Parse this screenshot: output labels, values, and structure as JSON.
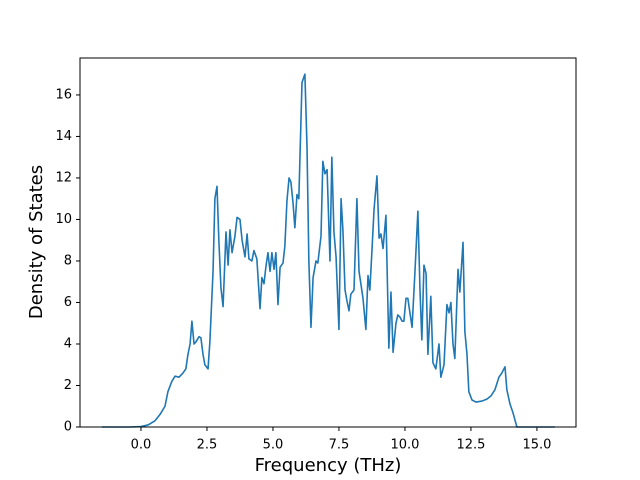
{
  "chart_data": {
    "type": "line",
    "xlabel": "Frequency (THz)",
    "ylabel": "Density of States",
    "color": "#1f77b4",
    "x": [
      -1.48,
      -0.42,
      0,
      0.27,
      0.53,
      0.72,
      0.91,
      1.02,
      1.17,
      1.29,
      1.44,
      1.59,
      1.7,
      1.78,
      1.86,
      1.93,
      2.01,
      2.08,
      2.2,
      2.27,
      2.35,
      2.42,
      2.54,
      2.61,
      2.73,
      2.8,
      2.88,
      2.95,
      3.03,
      3.11,
      3.22,
      3.3,
      3.37,
      3.45,
      3.56,
      3.64,
      3.75,
      3.83,
      3.94,
      4.02,
      4.09,
      4.2,
      4.28,
      4.39,
      4.51,
      4.58,
      4.66,
      4.73,
      4.81,
      4.89,
      4.96,
      5.04,
      5.11,
      5.19,
      5.27,
      5.38,
      5.45,
      5.53,
      5.61,
      5.68,
      5.76,
      5.83,
      5.91,
      5.98,
      6.1,
      6.21,
      6.29,
      6.36,
      6.44,
      6.52,
      6.63,
      6.7,
      6.82,
      6.89,
      6.97,
      7.05,
      7.16,
      7.23,
      7.31,
      7.39,
      7.5,
      7.58,
      7.65,
      7.73,
      7.8,
      7.88,
      7.95,
      8.07,
      8.18,
      8.26,
      8.33,
      8.41,
      8.52,
      8.6,
      8.67,
      8.75,
      8.83,
      8.94,
      9.02,
      9.09,
      9.17,
      9.28,
      9.39,
      9.47,
      9.55,
      9.66,
      9.73,
      9.81,
      9.89,
      9.96,
      10.04,
      10.11,
      10.19,
      10.27,
      10.38,
      10.49,
      10.57,
      10.64,
      10.72,
      10.8,
      10.87,
      10.98,
      11.06,
      11.17,
      11.29,
      11.36,
      11.48,
      11.59,
      11.67,
      11.74,
      11.82,
      11.89,
      12.01,
      12.08,
      12.2,
      12.27,
      12.35,
      12.42,
      12.54,
      12.69,
      12.92,
      13.11,
      13.26,
      13.41,
      13.56,
      13.67,
      13.79,
      13.86,
      13.98,
      14.09,
      14.24,
      14.73,
      15.68
    ],
    "values": [
      0,
      0,
      0.02,
      0.1,
      0.3,
      0.6,
      1.0,
      1.7,
      2.2,
      2.45,
      2.4,
      2.6,
      2.8,
      3.5,
      4.0,
      5.1,
      4.0,
      4.1,
      4.35,
      4.3,
      3.5,
      3.0,
      2.8,
      4.1,
      7.5,
      11.0,
      11.6,
      9.0,
      6.7,
      5.8,
      9.4,
      7.8,
      9.5,
      8.4,
      9.2,
      10.1,
      10.0,
      9.0,
      8.2,
      9.3,
      8.1,
      8.0,
      8.5,
      8.1,
      5.7,
      7.2,
      6.9,
      7.7,
      8.4,
      7.5,
      8.4,
      7.6,
      8.4,
      5.9,
      7.7,
      7.9,
      8.7,
      10.9,
      12.0,
      11.8,
      10.8,
      9.6,
      11.2,
      11.0,
      16.6,
      17.0,
      13.5,
      8.0,
      4.8,
      7.2,
      8.0,
      7.9,
      9.2,
      12.8,
      12.2,
      12.4,
      8.0,
      13.0,
      9.4,
      8.2,
      4.7,
      11.0,
      9.5,
      6.6,
      6.1,
      5.6,
      6.4,
      6.6,
      11.0,
      7.5,
      6.9,
      6.2,
      4.7,
      7.3,
      6.6,
      8.5,
      10.5,
      12.1,
      9.1,
      9.3,
      8.6,
      10.2,
      3.8,
      6.5,
      3.6,
      5.0,
      5.4,
      5.3,
      5.1,
      5.1,
      6.2,
      6.2,
      5.5,
      4.8,
      7.5,
      10.4,
      6.6,
      4.2,
      7.8,
      7.4,
      3.5,
      6.3,
      3.1,
      2.8,
      4.0,
      2.4,
      3.0,
      5.9,
      5.5,
      6.0,
      4.0,
      3.3,
      7.6,
      6.5,
      8.9,
      4.6,
      3.5,
      1.7,
      1.3,
      1.2,
      1.25,
      1.35,
      1.5,
      1.8,
      2.4,
      2.6,
      2.9,
      1.8,
      1.1,
      0.7,
      0,
      0,
      0
    ],
    "xlim": [
      -2.31,
      16.48
    ],
    "ylim": [
      0,
      17.78
    ],
    "xticks": [
      {
        "value": 0,
        "label": "0.0"
      },
      2.5,
      {
        "value": 5,
        "label": "5.0"
      },
      7.5,
      {
        "value": 10,
        "label": "10.0"
      },
      12.5,
      {
        "value": 15,
        "label": "15.0"
      }
    ],
    "yticks": [
      0,
      2,
      4,
      6,
      8,
      10,
      12,
      14,
      16
    ],
    "grid": false
  }
}
